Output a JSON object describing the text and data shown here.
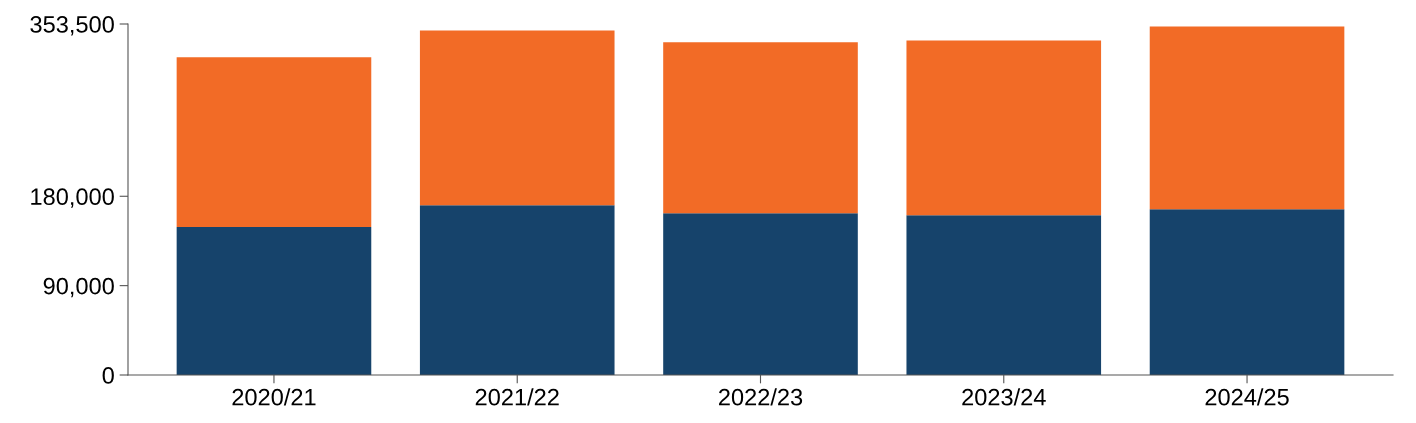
{
  "chart_data": {
    "type": "bar",
    "stacked": true,
    "categories": [
      "2020/21",
      "2021/22",
      "2022/23",
      "2023/24",
      "2024/25"
    ],
    "series": [
      {
        "color": "#16436b",
        "values": [
          149000,
          171000,
          163000,
          161000,
          167000
        ]
      },
      {
        "color": "#f26b26",
        "values": [
          171000,
          176000,
          172000,
          176000,
          184000
        ]
      }
    ],
    "ylim": [
      0,
      353500
    ],
    "yticks": [
      0,
      {
        "value": 90000,
        "label": "90,000"
      },
      {
        "value": 180000,
        "label": "180,000"
      },
      {
        "value": 353500,
        "label": "353,500"
      }
    ],
    "grid": false,
    "legend": false
  }
}
